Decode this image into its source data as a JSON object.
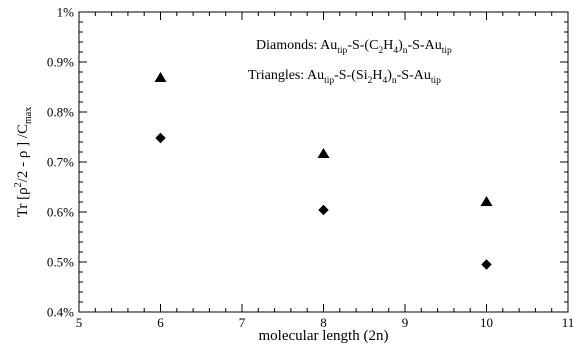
{
  "chart_data": {
    "type": "scatter",
    "xlabel": "molecular length (2n)",
    "ylabel": {
      "base": "Tr [ρ",
      "sup": "2",
      "mid": "/2 - ρ ] /C",
      "sub": "max"
    },
    "xlim": [
      5,
      11
    ],
    "ylim": [
      0.4,
      1.0
    ],
    "x_ticks": [
      5,
      6,
      7,
      8,
      9,
      10,
      11
    ],
    "x_tick_labels": [
      "5",
      "6",
      "7",
      "8",
      "9",
      "10",
      "11"
    ],
    "y_ticks": [
      0.4,
      0.5,
      0.6,
      0.7,
      0.8,
      0.9,
      1.0
    ],
    "y_tick_labels": [
      "0.4%",
      "0.5%",
      "0.6%",
      "0.7%",
      "0.8%",
      "0.9%",
      "1%"
    ],
    "grid": false,
    "series": [
      {
        "marker": "diamond",
        "color": "#000000",
        "points": [
          {
            "x": 6,
            "y": 0.748
          },
          {
            "x": 8,
            "y": 0.604
          },
          {
            "x": 10,
            "y": 0.495
          }
        ]
      },
      {
        "marker": "triangle",
        "color": "#000000",
        "points": [
          {
            "x": 6,
            "y": 0.869
          },
          {
            "x": 8,
            "y": 0.717
          },
          {
            "x": 10,
            "y": 0.621
          }
        ]
      }
    ],
    "annotations": [
      {
        "name": "diamonds-legend",
        "parts": [
          {
            "t": "Diamonds: Au"
          },
          {
            "t": "tip",
            "sub": true
          },
          {
            "t": "-S-(C"
          },
          {
            "t": "2",
            "sub": true
          },
          {
            "t": "H"
          },
          {
            "t": "4",
            "sub": true
          },
          {
            "t": ")"
          },
          {
            "t": "n",
            "sub": true
          },
          {
            "t": "-S-Au"
          },
          {
            "t": "tip",
            "sub": true
          }
        ]
      },
      {
        "name": "triangles-legend",
        "parts": [
          {
            "t": "Triangles: Au"
          },
          {
            "t": "tip",
            "sub": true
          },
          {
            "t": "-S-(Si"
          },
          {
            "t": "2",
            "sub": true
          },
          {
            "t": "H"
          },
          {
            "t": "4",
            "sub": true
          },
          {
            "t": ")"
          },
          {
            "t": "n",
            "sub": true
          },
          {
            "t": "-S-Au"
          },
          {
            "t": "tip",
            "sub": true
          }
        ]
      }
    ]
  }
}
